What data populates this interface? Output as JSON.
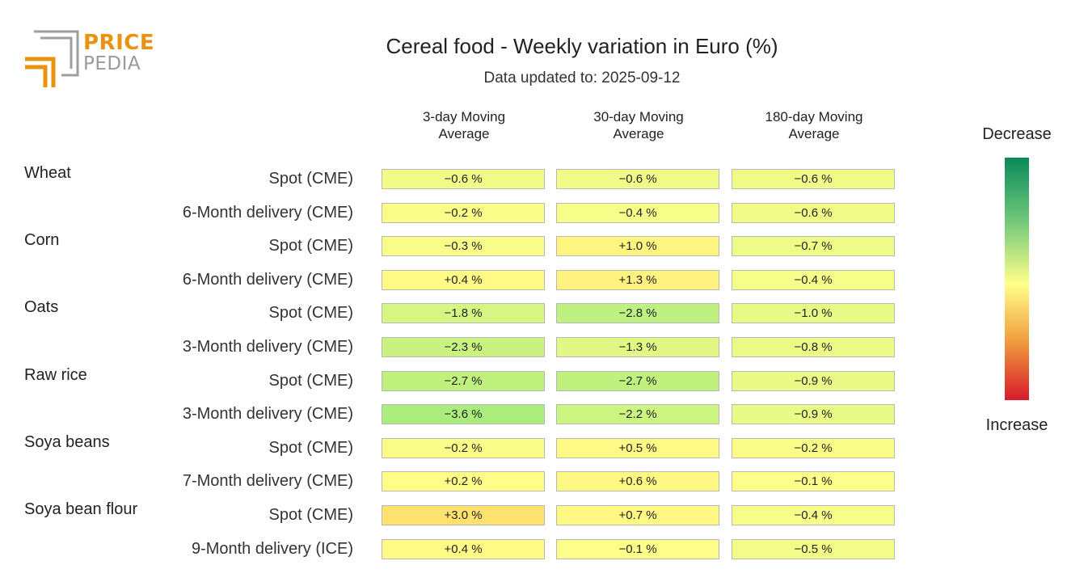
{
  "logo": {
    "line1": "PRICE",
    "line2": "PEDIA"
  },
  "chart_data": {
    "type": "table",
    "title": "Cereal food - Weekly variation in Euro (%)",
    "subtitle": "Data updated to: 2025-09-12",
    "columns": [
      {
        "line1": "3-day Moving",
        "line2": "Average"
      },
      {
        "line1": "30-day Moving",
        "line2": "Average"
      },
      {
        "line1": "180-day Moving",
        "line2": "Average"
      }
    ],
    "groups": [
      {
        "name": "Wheat",
        "rows": [
          {
            "label": "Spot (CME)",
            "values": [
              -0.6,
              -0.6,
              -0.6
            ]
          },
          {
            "label": "6-Month delivery (CME)",
            "values": [
              -0.2,
              -0.4,
              -0.6
            ]
          }
        ]
      },
      {
        "name": "Corn",
        "rows": [
          {
            "label": "Spot (CME)",
            "values": [
              -0.3,
              1.0,
              -0.7
            ]
          },
          {
            "label": "6-Month delivery (CME)",
            "values": [
              0.4,
              1.3,
              -0.4
            ]
          }
        ]
      },
      {
        "name": "Oats",
        "rows": [
          {
            "label": "Spot (CME)",
            "values": [
              -1.8,
              -2.8,
              -1.0
            ]
          },
          {
            "label": "3-Month delivery (CME)",
            "values": [
              -2.3,
              -1.3,
              -0.8
            ]
          }
        ]
      },
      {
        "name": "Raw rice",
        "rows": [
          {
            "label": "Spot (CME)",
            "values": [
              -2.7,
              -2.7,
              -0.9
            ]
          },
          {
            "label": "3-Month delivery (CME)",
            "values": [
              -3.6,
              -2.2,
              -0.9
            ]
          }
        ]
      },
      {
        "name": "Soya beans",
        "rows": [
          {
            "label": "Spot (CME)",
            "values": [
              -0.2,
              0.5,
              -0.2
            ]
          },
          {
            "label": "7-Month delivery (CME)",
            "values": [
              0.2,
              0.6,
              -0.1
            ]
          }
        ]
      },
      {
        "name": "Soya bean flour",
        "rows": [
          {
            "label": "Spot (CME)",
            "values": [
              3.0,
              0.7,
              -0.4
            ]
          },
          {
            "label": "9-Month delivery (ICE)",
            "values": [
              0.4,
              -0.1,
              -0.5
            ]
          }
        ]
      }
    ],
    "value_suffix": " %",
    "legend": {
      "top_label": "Decrease",
      "bottom_label": "Increase"
    }
  }
}
